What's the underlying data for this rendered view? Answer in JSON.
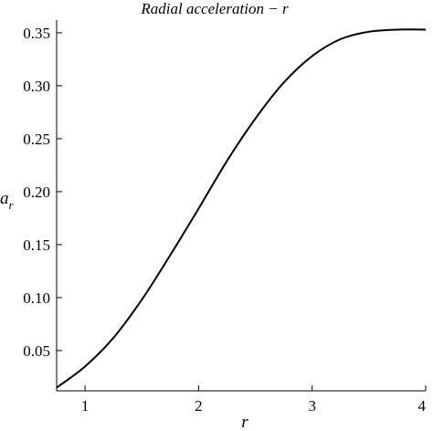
{
  "chart_data": {
    "type": "line",
    "title": "Radial acceleration − r",
    "xlabel": "r",
    "ylabel": {
      "main": "a",
      "subscript": "r"
    },
    "xlim": [
      0.75,
      4.0
    ],
    "ylim": [
      0.012,
      0.362
    ],
    "xticks": [
      {
        "value": 1,
        "label": "1"
      },
      {
        "value": 2,
        "label": "2"
      },
      {
        "value": 3,
        "label": "3"
      },
      {
        "value": 4,
        "label": "4"
      }
    ],
    "yticks": [
      {
        "value": 0.05,
        "label": "0.05"
      },
      {
        "value": 0.1,
        "label": "0.10"
      },
      {
        "value": 0.15,
        "label": "0.15"
      },
      {
        "value": 0.2,
        "label": "0.20"
      },
      {
        "value": 0.25,
        "label": "0.25"
      },
      {
        "value": 0.3,
        "label": "0.30"
      },
      {
        "value": 0.35,
        "label": "0.35"
      }
    ],
    "grid": false,
    "series": [
      {
        "color": "#000000",
        "x": [
          0.75,
          1.0,
          1.25,
          1.5,
          1.75,
          2.0,
          2.25,
          2.5,
          2.75,
          3.0,
          3.25,
          3.5,
          3.75,
          4.0
        ],
        "y": [
          0.015,
          0.035,
          0.062,
          0.098,
          0.14,
          0.184,
          0.229,
          0.269,
          0.303,
          0.328,
          0.344,
          0.351,
          0.353,
          0.353
        ]
      }
    ]
  }
}
